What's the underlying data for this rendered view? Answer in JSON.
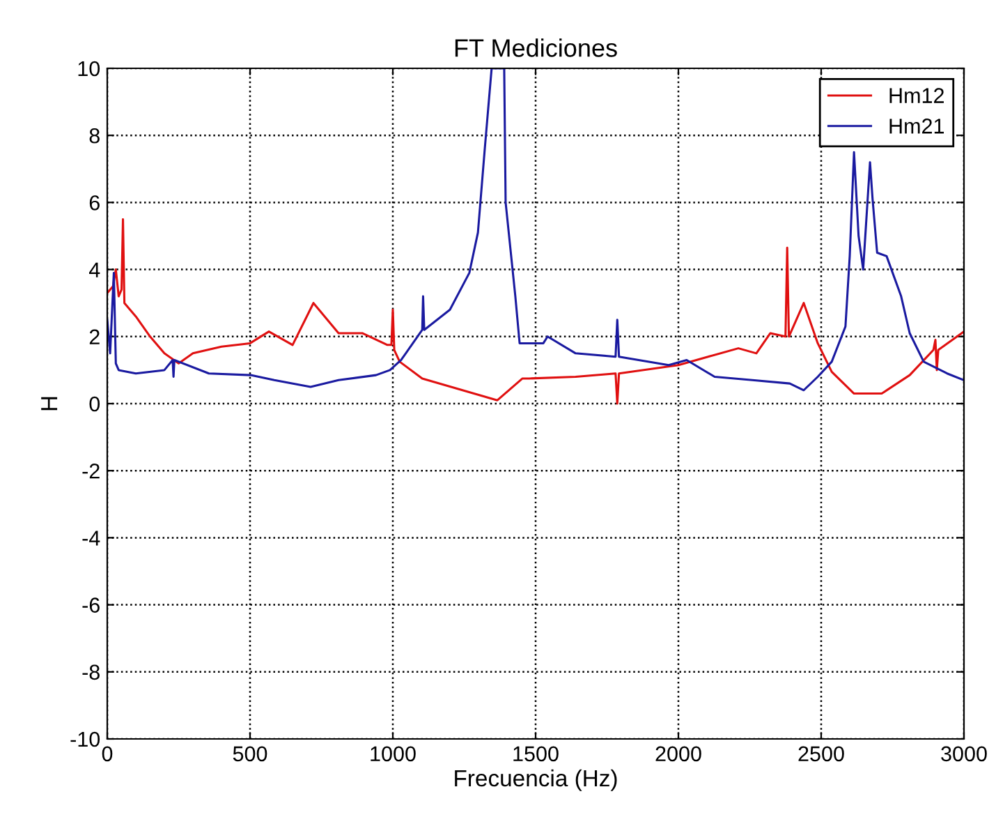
{
  "chart_data": {
    "type": "line",
    "title": "FT Mediciones",
    "xlabel": "Frecuencia (Hz)",
    "ylabel": "H",
    "xlim": [
      0,
      3000
    ],
    "xticks": [
      0,
      500,
      1000,
      1500,
      2000,
      2500,
      3000
    ],
    "ylim": [
      -10,
      10
    ],
    "yticks": [
      -10,
      -8,
      -6,
      -4,
      -2,
      0,
      2,
      4,
      6,
      8,
      10
    ],
    "grid": true,
    "legend": "top right",
    "line_style": "solid",
    "marker": "none",
    "series": [
      {
        "name": "Hm12",
        "color": "#e01010",
        "x": [
          0,
          20,
          30,
          40,
          50,
          55,
          60,
          100,
          150,
          200,
          250,
          300,
          400,
          500,
          566,
          649,
          722,
          810,
          893,
          981,
          995,
          1000,
          1005,
          1024,
          1103,
          1366,
          1454,
          1478,
          1640,
          1780,
          1786,
          1792,
          2000,
          2210,
          2273,
          2322,
          2375,
          2381,
          2387,
          2439,
          2488,
          2537,
          2615,
          2712,
          2810,
          2893,
          2900,
          2905,
          2910,
          3000
        ],
        "values": [
          3.3,
          3.5,
          4.0,
          3.2,
          3.4,
          5.5,
          3.0,
          2.6,
          2.0,
          1.5,
          1.2,
          1.5,
          1.7,
          1.8,
          2.15,
          1.75,
          3.0,
          2.1,
          2.1,
          1.75,
          1.75,
          2.8,
          1.6,
          1.25,
          0.75,
          0.1,
          0.75,
          0.75,
          0.8,
          0.9,
          0.0,
          0.9,
          1.15,
          1.65,
          1.5,
          2.1,
          2.0,
          4.65,
          2.0,
          3.0,
          1.8,
          0.95,
          0.3,
          0.3,
          0.85,
          1.6,
          1.9,
          1.0,
          1.6,
          2.15
        ]
      },
      {
        "name": "Hm21",
        "color": "#1a1aa0",
        "x": [
          0,
          10,
          23,
          30,
          40,
          100,
          200,
          229,
          232,
          235,
          356,
          502,
          585,
          712,
          810,
          941,
          990,
          1029,
          1103,
          1106,
          1110,
          1200,
          1268,
          1298,
          1322,
          1346,
          1390,
          1395,
          1429,
          1444,
          1527,
          1542,
          1640,
          1780,
          1786,
          1792,
          1966,
          2029,
          2127,
          2259,
          2390,
          2439,
          2488,
          2537,
          2585,
          2600,
          2615,
          2631,
          2647,
          2671,
          2680,
          2696,
          2729,
          2780,
          2810,
          2859,
          2941,
          3000
        ],
        "values": [
          2.5,
          1.5,
          3.9,
          1.2,
          1.0,
          0.9,
          1.0,
          1.3,
          0.8,
          1.3,
          0.9,
          0.85,
          0.7,
          0.5,
          0.7,
          0.85,
          1.0,
          1.3,
          2.2,
          3.2,
          2.2,
          2.8,
          3.9,
          5.1,
          7.6,
          10,
          10,
          6.0,
          3.2,
          1.8,
          1.8,
          2.0,
          1.5,
          1.4,
          2.5,
          1.4,
          1.15,
          1.3,
          0.8,
          0.7,
          0.6,
          0.4,
          0.8,
          1.25,
          2.3,
          4.4,
          7.5,
          5.0,
          4.0,
          7.2,
          6.1,
          4.5,
          4.4,
          3.2,
          2.1,
          1.25,
          0.9,
          0.7
        ]
      }
    ]
  }
}
